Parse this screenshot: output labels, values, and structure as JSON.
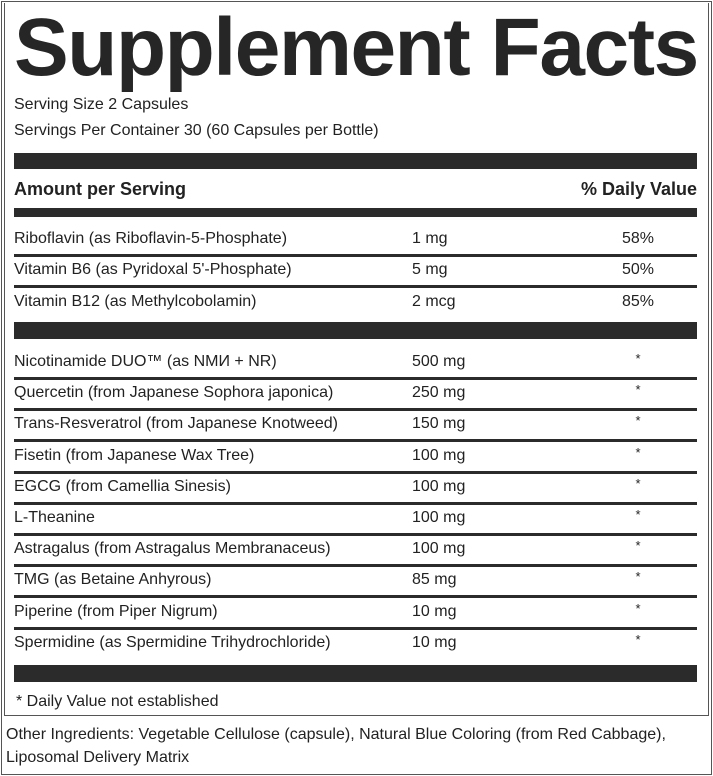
{
  "title": "Supplement Facts",
  "serving_size": "Serving Size 2 Capsules",
  "servings_per_container": "Servings Per Container 30 (60 Capsules per Bottle)",
  "header": {
    "amount": "Amount per Serving",
    "daily_value": "% Daily Value"
  },
  "vitamins": [
    {
      "name": "Riboflavin  (as Riboflavin-5-Phosphate)",
      "amount": "1 mg",
      "dv": "58%"
    },
    {
      "name": "Vitamin B6 (as Pyridoxal 5'-Phosphate)",
      "amount": "5 mg",
      "dv": "50%"
    },
    {
      "name": "Vitamin B12  (as Methylcobolamin)",
      "amount": "2 mcg",
      "dv": "85%"
    }
  ],
  "ingredients": [
    {
      "name": "Nicotinamide DUO™ (as NMИ + NR)",
      "amount": "500 mg",
      "dv": "*"
    },
    {
      "name": "Quercetin (from Japanese Sophora japonica)",
      "amount": "250 mg",
      "dv": "*"
    },
    {
      "name": "Trans-Resveratrol (from Japanese Knotweed)",
      "amount": "150 mg",
      "dv": "*"
    },
    {
      "name": "Fisetin (from Japanese Wax Tree)",
      "amount": "100 mg",
      "dv": "*"
    },
    {
      "name": "EGCG (from Camellia Sinesis)",
      "amount": "100 mg",
      "dv": "*"
    },
    {
      "name": "L-Theanine",
      "amount": "100 mg",
      "dv": "*"
    },
    {
      "name": "Astragalus (from Astragalus Membranaceus)",
      "amount": "100 mg",
      "dv": "*"
    },
    {
      "name": "TMG (as Betaine Anhyrous)",
      "amount": "85 mg",
      "dv": "*"
    },
    {
      "name": "Piperine (from Piper Nigrum)",
      "amount": "10 mg",
      "dv": "*"
    },
    {
      "name": "Spermidine (as Spermidine Trihydrochloride)",
      "amount": "10 mg",
      "dv": "*"
    }
  ],
  "footnote": "* Daily Value not established",
  "other_ingredients_line1": "Other Ingredients: Vegetable Cellulose (capsule), Natural Blue Coloring (from Red Cabbage),",
  "other_ingredients_line2": "Liposomal Delivery Matrix"
}
